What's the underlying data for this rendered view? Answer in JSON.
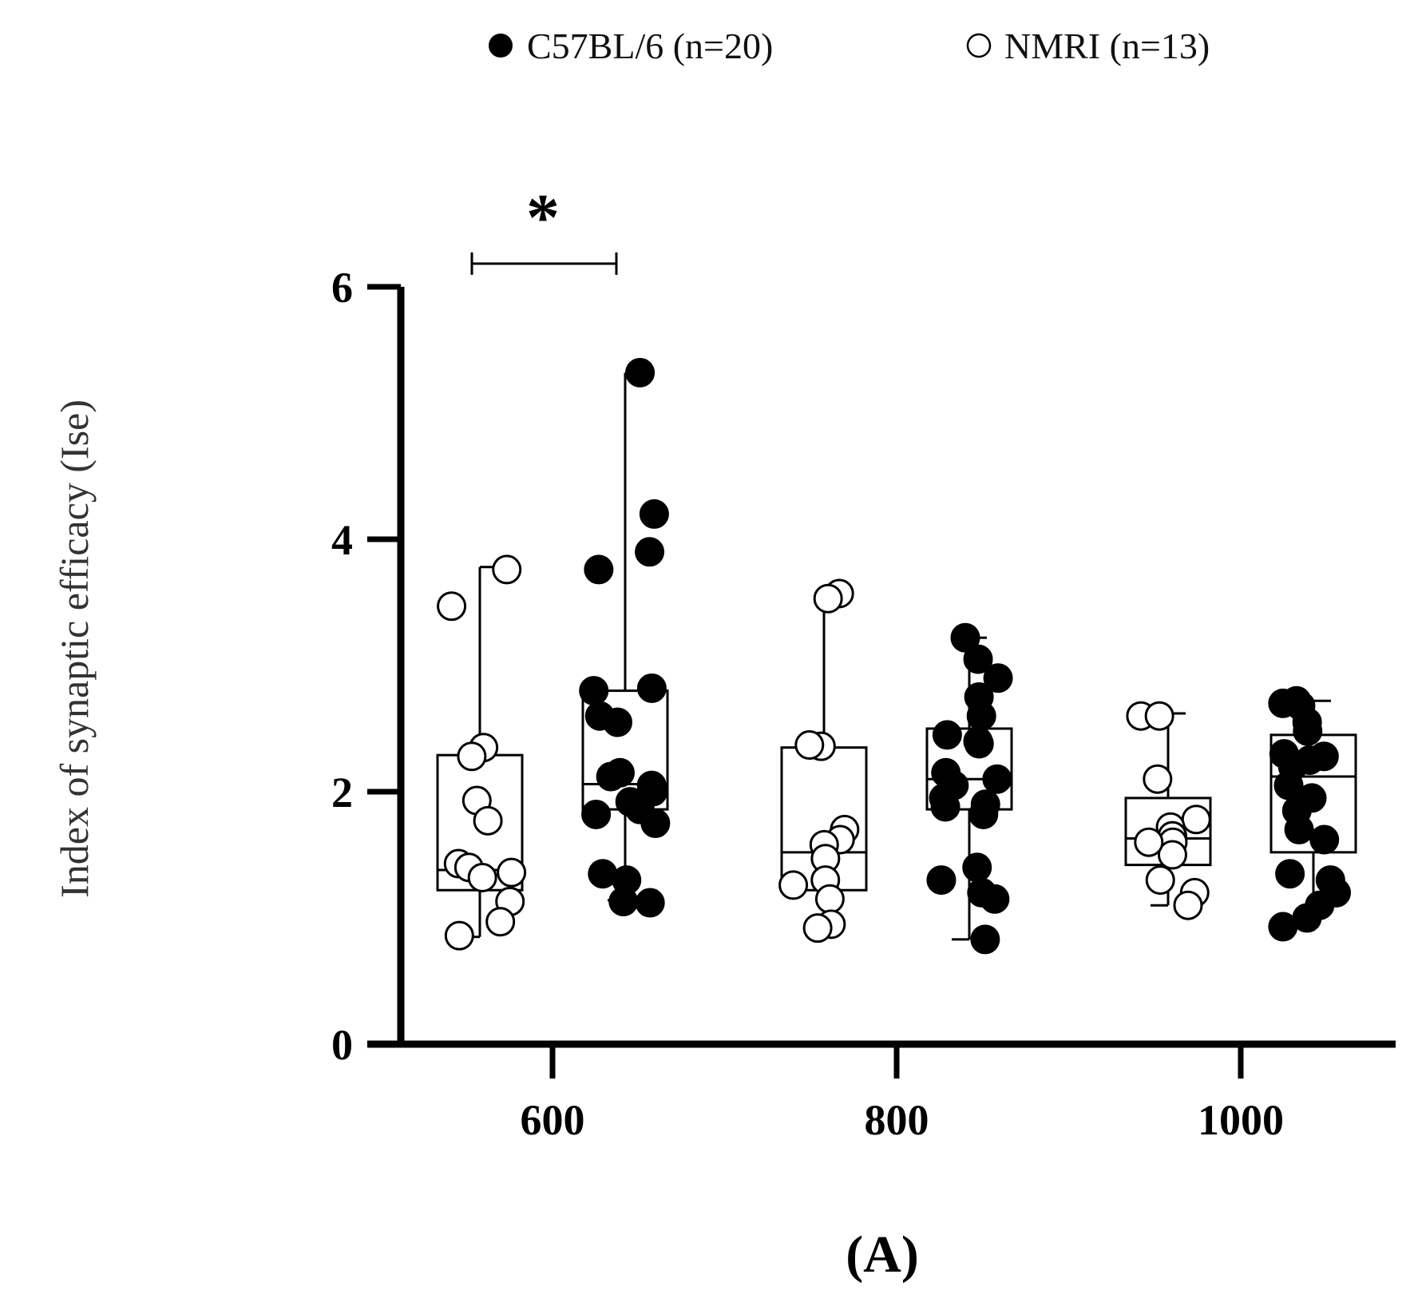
{
  "chart_data": {
    "type": "box",
    "xlabel": "",
    "ylabel": "Index of synaptic efficacy (Ise)",
    "ylim": [
      0,
      6
    ],
    "yticks": [
      "0",
      "2",
      "4",
      "6"
    ],
    "categories": [
      "600",
      "800",
      "1000"
    ],
    "panel_label": "(A)",
    "legend": [
      {
        "name": "C57BL/6 (n=20)",
        "marker": "filled-circle"
      },
      {
        "name": "NMRI (n=13)",
        "marker": "open-circle"
      }
    ],
    "significance": [
      {
        "category": "600",
        "label": "*",
        "between": [
          "NMRI",
          "C57BL/6"
        ]
      }
    ],
    "series": [
      {
        "name": "NMRI",
        "legend_label": "NMRI (n=13)",
        "fill": "#ffffff",
        "groups": [
          {
            "category": "600",
            "min": 0.85,
            "q1": 1.22,
            "median": 1.38,
            "q3": 2.29,
            "max": 3.78,
            "points": [
              3.76,
              3.47,
              2.35,
              2.28,
              1.93,
              1.77,
              1.43,
              1.4,
              1.32,
              1.13,
              0.97,
              0.86,
              1.36
            ]
          },
          {
            "category": "800",
            "min": 0.93,
            "q1": 1.22,
            "median": 1.52,
            "q3": 2.35,
            "max": 3.57,
            "points": [
              3.57,
              3.53,
              2.36,
              2.37,
              1.7,
              1.62,
              1.58,
              1.47,
              1.3,
              1.26,
              1.15,
              0.95,
              0.92
            ]
          },
          {
            "category": "1000",
            "min": 1.1,
            "q1": 1.42,
            "median": 1.63,
            "q3": 1.95,
            "max": 2.62,
            "points": [
              2.6,
              2.6,
              2.1,
              1.78,
              1.72,
              1.65,
              1.65,
              1.6,
              1.5,
              1.3,
              1.2,
              1.1,
              1.6
            ]
          }
        ]
      },
      {
        "name": "C57BL/6",
        "legend_label": "C57BL/6 (n=20)",
        "fill": "#000000",
        "groups": [
          {
            "category": "600",
            "min": 1.14,
            "q1": 1.86,
            "median": 2.06,
            "q3": 2.8,
            "max": 5.32,
            "points": [
              5.32,
              4.2,
              3.9,
              3.76,
              2.82,
              2.8,
              2.6,
              2.55,
              2.15,
              2.12,
              2.05,
              2.0,
              1.92,
              1.86,
              1.82,
              1.75,
              1.35,
              1.3,
              1.13,
              1.12
            ]
          },
          {
            "category": "800",
            "min": 0.83,
            "q1": 1.86,
            "median": 2.1,
            "q3": 2.5,
            "max": 3.22,
            "points": [
              3.22,
              3.05,
              2.9,
              2.75,
              2.6,
              2.45,
              2.4,
              2.38,
              2.15,
              2.1,
              2.05,
              1.95,
              1.9,
              1.88,
              1.82,
              1.4,
              1.3,
              1.2,
              1.15,
              0.83
            ]
          },
          {
            "category": "1000",
            "min": 0.93,
            "q1": 1.52,
            "median": 2.12,
            "q3": 2.45,
            "max": 2.72,
            "points": [
              2.72,
              2.7,
              2.68,
              2.55,
              2.48,
              2.3,
              2.28,
              2.25,
              2.2,
              2.05,
              1.95,
              1.85,
              1.7,
              1.62,
              1.35,
              1.3,
              1.2,
              1.1,
              1.0,
              0.93
            ]
          }
        ]
      }
    ]
  }
}
